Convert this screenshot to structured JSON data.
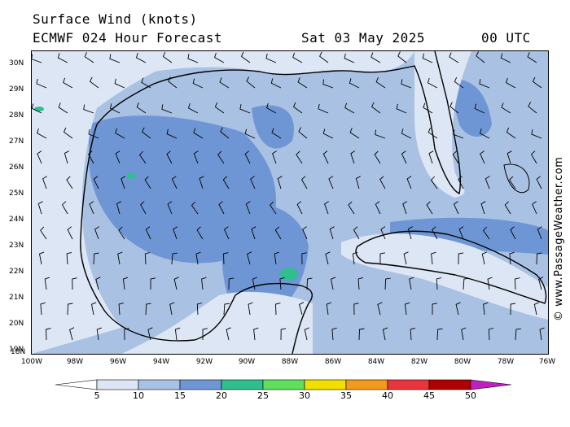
{
  "header": {
    "title": "Surface Wind (knots)",
    "model": "ECMWF 024 Hour Forecast",
    "date": "Sat 03 May 2025",
    "time": "00 UTC"
  },
  "map": {
    "lat_labels": [
      "30N",
      "29N",
      "28N",
      "27N",
      "26N",
      "25N",
      "24N",
      "23N",
      "22N",
      "21N",
      "20N",
      "19N",
      "18N"
    ],
    "lon_labels": [
      "100W",
      "98W",
      "96W",
      "94W",
      "92W",
      "90W",
      "88W",
      "86W",
      "84W",
      "82W",
      "80W",
      "78W",
      "76W"
    ],
    "land_color": "#e6eefa",
    "sea_color": "#a9c1e3"
  },
  "legend": {
    "ticks": [
      "5",
      "10",
      "15",
      "20",
      "25",
      "30",
      "35",
      "40",
      "45",
      "50"
    ],
    "colors": [
      "#ffffff",
      "#dde6f5",
      "#a9c1e3",
      "#6f96d4",
      "#2fbf8f",
      "#5ee05e",
      "#f0e000",
      "#f39a1a",
      "#e8343a",
      "#b00000",
      "#c020c0"
    ]
  },
  "credit": "© www.PassageWeather.com"
}
